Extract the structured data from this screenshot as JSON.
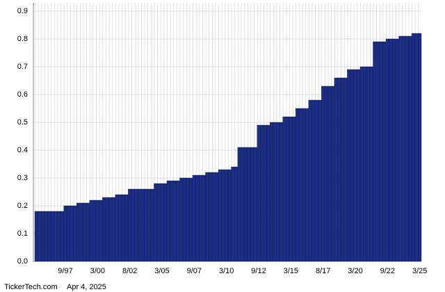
{
  "chart_data": {
    "type": "bar",
    "categories": [
      null,
      null,
      null,
      null,
      null,
      null,
      null,
      null,
      null,
      "9/97",
      null,
      null,
      null,
      null,
      null,
      null,
      null,
      null,
      null,
      "3/00",
      null,
      null,
      null,
      null,
      null,
      null,
      null,
      null,
      null,
      "8/02",
      null,
      null,
      null,
      null,
      null,
      null,
      null,
      null,
      null,
      "3/05",
      null,
      null,
      null,
      null,
      null,
      null,
      null,
      null,
      null,
      "9/07",
      null,
      null,
      null,
      null,
      null,
      null,
      null,
      null,
      null,
      "3/10",
      null,
      null,
      null,
      null,
      null,
      null,
      null,
      null,
      null,
      "9/12",
      null,
      null,
      null,
      null,
      null,
      null,
      null,
      null,
      null,
      "3/15",
      null,
      null,
      null,
      null,
      null,
      null,
      null,
      null,
      null,
      "8/17",
      null,
      null,
      null,
      null,
      null,
      null,
      null,
      null,
      null,
      "3/20",
      null,
      null,
      null,
      null,
      null,
      null,
      null,
      null,
      null,
      "9/22",
      null,
      null,
      null,
      null,
      null,
      null,
      null,
      null,
      null,
      "3/25"
    ],
    "values": [
      0.18,
      0.18,
      0.18,
      0.18,
      0.18,
      0.18,
      0.18,
      0.18,
      0.18,
      0.2,
      0.2,
      0.2,
      0.2,
      0.21,
      0.21,
      0.21,
      0.21,
      0.22,
      0.22,
      0.22,
      0.22,
      0.23,
      0.23,
      0.23,
      0.23,
      0.24,
      0.24,
      0.24,
      0.24,
      0.26,
      0.26,
      0.26,
      0.26,
      0.26,
      0.26,
      0.26,
      0.26,
      0.28,
      0.28,
      0.28,
      0.28,
      0.29,
      0.29,
      0.29,
      0.29,
      0.3,
      0.3,
      0.3,
      0.3,
      0.31,
      0.31,
      0.31,
      0.31,
      0.32,
      0.32,
      0.32,
      0.32,
      0.33,
      0.33,
      0.33,
      0.33,
      0.34,
      0.34,
      0.41,
      0.41,
      0.41,
      0.41,
      0.41,
      0.41,
      0.49,
      0.49,
      0.49,
      0.49,
      0.5,
      0.5,
      0.5,
      0.5,
      0.52,
      0.52,
      0.52,
      0.52,
      0.55,
      0.55,
      0.55,
      0.55,
      0.58,
      0.58,
      0.58,
      0.58,
      0.63,
      0.63,
      0.63,
      0.63,
      0.66,
      0.66,
      0.66,
      0.66,
      0.69,
      0.69,
      0.69,
      0.69,
      0.7,
      0.7,
      0.7,
      0.7,
      0.79,
      0.79,
      0.79,
      0.79,
      0.8,
      0.8,
      0.8,
      0.8,
      0.81,
      0.81,
      0.81,
      0.81,
      0.82,
      0.82,
      0.82
    ],
    "color": "#1c2d82",
    "ylim": [
      0,
      0.93
    ],
    "yticks": [
      {
        "value": 0,
        "label": "0.0"
      },
      0.1,
      0.2,
      0.3,
      0.4,
      0.5,
      0.6,
      0.7,
      0.8,
      0.9
    ],
    "grid": true,
    "source": "TickerTech.com",
    "date": "Apr 4, 2025"
  }
}
